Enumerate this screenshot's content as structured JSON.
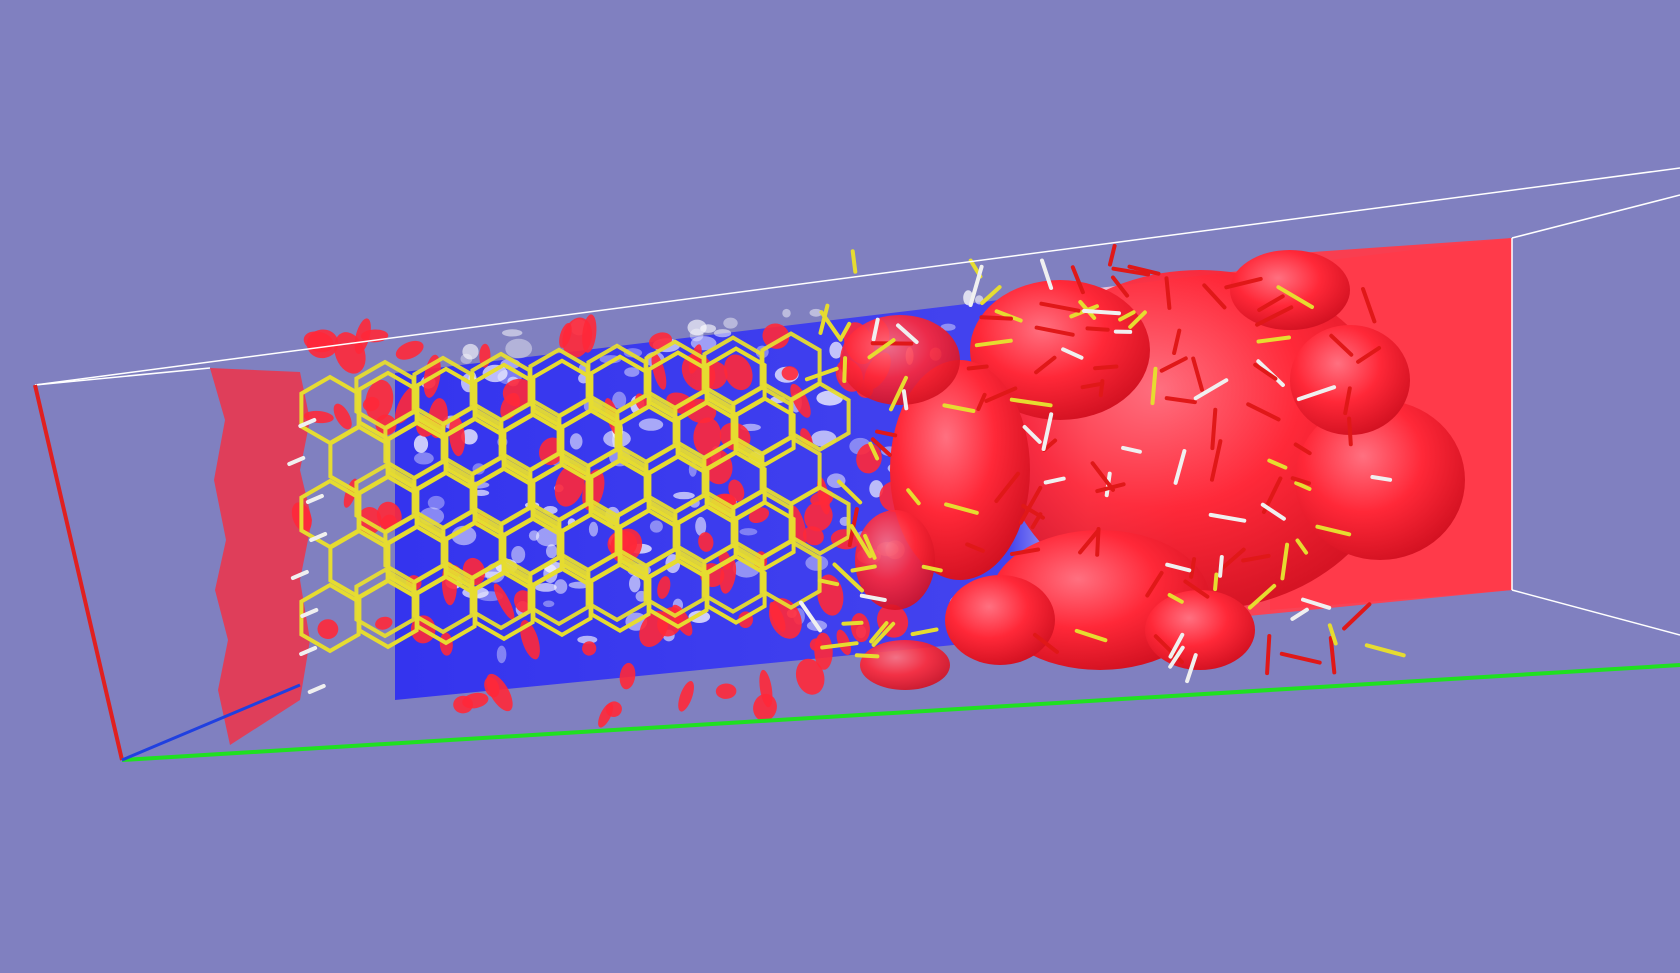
{
  "viewer": {
    "background_color": "#8080c0",
    "axis_colors": {
      "x": "#e02020",
      "y": "#20e020",
      "z": "#2040e0"
    },
    "cell_edge_color": "#ffffff",
    "slice_colors": {
      "positive": "#ff3040",
      "negative": "#3030f0",
      "neutral": "#ffffff"
    },
    "isosurface_color": "#ff2838",
    "bond_colors": {
      "silicon": "#e6dc30",
      "oxygen": "#e01818",
      "hydrogen": "#f0f0f0"
    }
  }
}
